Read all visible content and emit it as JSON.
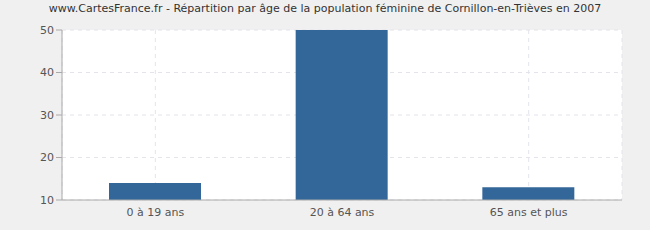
{
  "chart_data": {
    "type": "bar",
    "title": "www.CartesFrance.fr - Répartition par âge de la population féminine de Cornillon-en-Trièves en 2007",
    "categories": [
      "0 à 19 ans",
      "20 à 64 ans",
      "65 ans et plus"
    ],
    "values": [
      14,
      50,
      13
    ],
    "color": "#336699",
    "ylim": [
      10,
      50
    ],
    "yticks": [
      10,
      20,
      30,
      40,
      50
    ],
    "grid": true
  }
}
